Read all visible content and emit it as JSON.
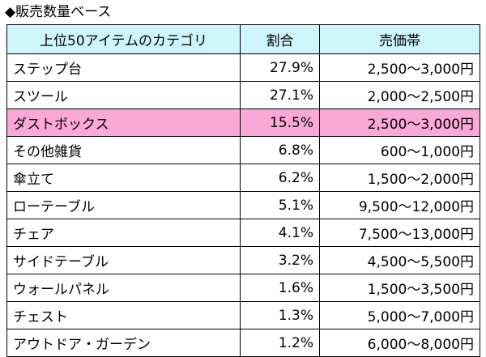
{
  "title": "◆販売数量ベース",
  "table": {
    "headers": [
      "上位50アイテムのカテゴリ",
      "割合",
      "売価帯"
    ],
    "rows": [
      {
        "category": "ステップ台",
        "share": "27.9%",
        "price": "2,500～3,000円"
      },
      {
        "category": "スツール",
        "share": "27.1%",
        "price": "2,000～2,500円"
      },
      {
        "category": "ダストボックス",
        "share": "15.5%",
        "price": "2,500～3,000円"
      },
      {
        "category": "その他雑貨",
        "share": "6.8%",
        "price": "600～1,000円"
      },
      {
        "category": "傘立て",
        "share": "6.2%",
        "price": "1,500～2,000円"
      },
      {
        "category": "ローテーブル",
        "share": "5.1%",
        "price": "9,500～12,000円"
      },
      {
        "category": "チェア",
        "share": "4.1%",
        "price": "7,500～13,000円"
      },
      {
        "category": "サイドテーブル",
        "share": "3.2%",
        "price": "4,500～5,500円"
      },
      {
        "category": "ウォールパネル",
        "share": "1.6%",
        "price": "1,500～3,500円"
      },
      {
        "category": "チェスト",
        "share": "1.3%",
        "price": "5,000～7,000円"
      },
      {
        "category": "アウトドア・ガーデン",
        "share": "1.2%",
        "price": "6,000～8,000円"
      }
    ]
  },
  "colors": {
    "header_bg": "#cdf5fb",
    "highlight_row_bg": "#f9a8d8"
  }
}
